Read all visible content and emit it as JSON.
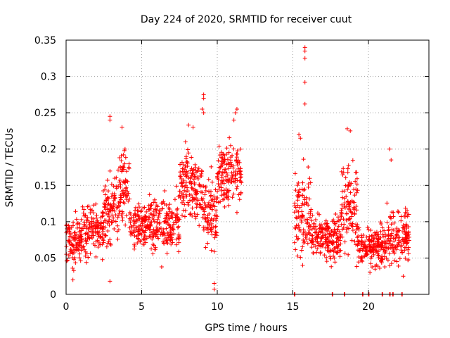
{
  "chart_data": {
    "type": "scatter",
    "title": "Day 224 of 2020, SRMTID for receiver cuut",
    "xlabel": "GPS time / hours",
    "ylabel": "SRMTID / TECUs",
    "xlim": [
      0,
      24
    ],
    "ylim": [
      0,
      0.35
    ],
    "grid": true,
    "x_ticks": [
      0,
      5,
      10,
      15,
      20
    ],
    "x_tick_labels": [
      "0",
      "5",
      "10",
      "15",
      "20"
    ],
    "y_ticks": [
      0,
      0.05,
      0.1,
      0.15,
      0.2,
      0.25,
      0.3,
      0.35
    ],
    "y_tick_labels": [
      "0",
      "0.05",
      "0.1",
      "0.15",
      "0.2",
      "0.25",
      "0.3",
      "0.35"
    ],
    "marker": "+",
    "series": [
      {
        "name": "SRMTID",
        "color": "#ff0000",
        "clusters": [
          {
            "x_start": 0.0,
            "x_end": 1.0,
            "center": 0.075,
            "spread": 0.025
          },
          {
            "x_start": 1.0,
            "x_end": 2.5,
            "center": 0.09,
            "spread": 0.03
          },
          {
            "x_start": 2.5,
            "x_end": 3.5,
            "center": 0.12,
            "spread": 0.04
          },
          {
            "x_start": 3.5,
            "x_end": 4.2,
            "center": 0.15,
            "spread": 0.04
          },
          {
            "x_start": 4.2,
            "x_end": 5.5,
            "center": 0.095,
            "spread": 0.025
          },
          {
            "x_start": 5.5,
            "x_end": 7.5,
            "center": 0.095,
            "spread": 0.03
          },
          {
            "x_start": 7.5,
            "x_end": 9.0,
            "center": 0.15,
            "spread": 0.035
          },
          {
            "x_start": 9.0,
            "x_end": 10.0,
            "center": 0.11,
            "spread": 0.04
          },
          {
            "x_start": 10.0,
            "x_end": 11.6,
            "center": 0.165,
            "spread": 0.035
          },
          {
            "x_start": 15.1,
            "x_end": 16.2,
            "center": 0.11,
            "spread": 0.05
          },
          {
            "x_start": 16.2,
            "x_end": 18.2,
            "center": 0.08,
            "spread": 0.025
          },
          {
            "x_start": 18.2,
            "x_end": 19.3,
            "center": 0.12,
            "spread": 0.045
          },
          {
            "x_start": 19.3,
            "x_end": 21.2,
            "center": 0.065,
            "spread": 0.02
          },
          {
            "x_start": 21.2,
            "x_end": 22.7,
            "center": 0.08,
            "spread": 0.03
          }
        ],
        "highlights": [
          {
            "x": 2.9,
            "y": 0.245
          },
          {
            "x": 2.9,
            "y": 0.24
          },
          {
            "x": 3.7,
            "y": 0.23
          },
          {
            "x": 3.9,
            "y": 0.2
          },
          {
            "x": 8.1,
            "y": 0.233
          },
          {
            "x": 8.4,
            "y": 0.23
          },
          {
            "x": 9.1,
            "y": 0.275
          },
          {
            "x": 9.1,
            "y": 0.27
          },
          {
            "x": 9.0,
            "y": 0.255
          },
          {
            "x": 9.1,
            "y": 0.25
          },
          {
            "x": 11.3,
            "y": 0.255
          },
          {
            "x": 11.2,
            "y": 0.25
          },
          {
            "x": 11.1,
            "y": 0.24
          },
          {
            "x": 15.8,
            "y": 0.34
          },
          {
            "x": 15.8,
            "y": 0.335
          },
          {
            "x": 15.8,
            "y": 0.325
          },
          {
            "x": 15.8,
            "y": 0.292
          },
          {
            "x": 15.8,
            "y": 0.262
          },
          {
            "x": 15.4,
            "y": 0.22
          },
          {
            "x": 15.5,
            "y": 0.215
          },
          {
            "x": 18.6,
            "y": 0.228
          },
          {
            "x": 18.8,
            "y": 0.225
          },
          {
            "x": 21.4,
            "y": 0.2
          },
          {
            "x": 21.5,
            "y": 0.185
          },
          {
            "x": 2.9,
            "y": 0.018
          },
          {
            "x": 0.45,
            "y": 0.02
          },
          {
            "x": 9.8,
            "y": 0.007
          },
          {
            "x": 9.8,
            "y": 0.015
          },
          {
            "x": 20.1,
            "y": 0.03
          },
          {
            "x": 22.3,
            "y": 0.025
          }
        ],
        "zero_markers": [
          15.1,
          17.6,
          18.4,
          19.6,
          20.0,
          20.9,
          21.4,
          21.6,
          22.2
        ]
      }
    ]
  }
}
